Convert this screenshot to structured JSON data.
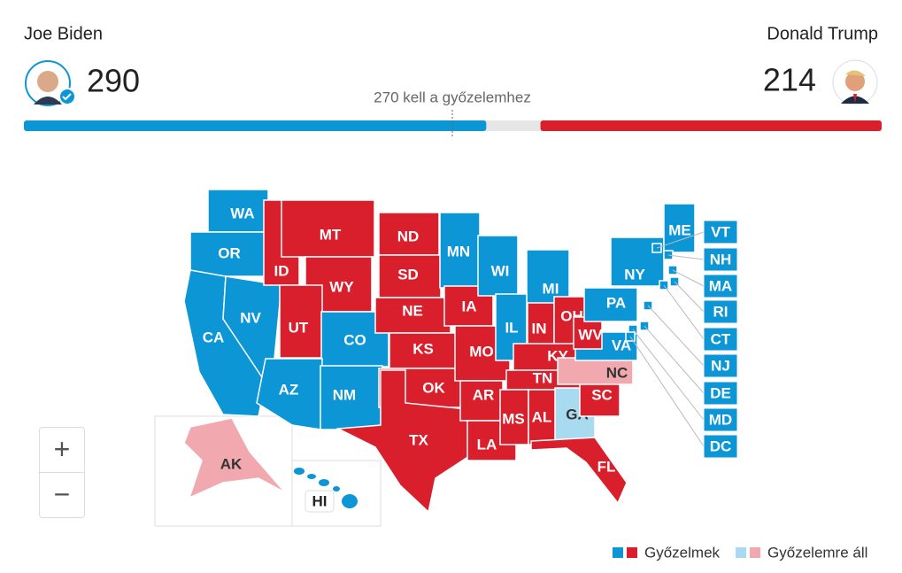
{
  "header": {
    "threshold": "270 kell a győzelemhez",
    "candidates": [
      {
        "name": "Joe Biden",
        "votes": 290,
        "color": "#0c96d6"
      },
      {
        "name": "Donald Trump",
        "votes": 214,
        "color": "#d91f2b"
      }
    ]
  },
  "controls": {
    "zoom_in": "+",
    "zoom_out": "−"
  },
  "legend": [
    {
      "label": "Győzelmek",
      "colors": [
        "#0c96d6",
        "#d91f2b"
      ]
    },
    {
      "label": "Győzelemre áll",
      "colors": [
        "#a8daf0",
        "#f1a9af"
      ]
    }
  ],
  "states": [
    {
      "label": "WA",
      "color": "#0c96d6"
    },
    {
      "label": "OR",
      "color": "#0c96d6"
    },
    {
      "label": "CA",
      "color": "#0c96d6"
    },
    {
      "label": "NV",
      "color": "#0c96d6"
    },
    {
      "label": "ID",
      "color": "#d91f2b"
    },
    {
      "label": "MT",
      "color": "#d91f2b"
    },
    {
      "label": "WY",
      "color": "#d91f2b"
    },
    {
      "label": "UT",
      "color": "#d91f2b"
    },
    {
      "label": "CO",
      "color": "#0c96d6"
    },
    {
      "label": "AZ",
      "color": "#0c96d6"
    },
    {
      "label": "NM",
      "color": "#0c96d6"
    },
    {
      "label": "ND",
      "color": "#d91f2b"
    },
    {
      "label": "SD",
      "color": "#d91f2b"
    },
    {
      "label": "NE",
      "color": "#d91f2b"
    },
    {
      "label": "KS",
      "color": "#d91f2b"
    },
    {
      "label": "OK",
      "color": "#d91f2b"
    },
    {
      "label": "TX",
      "color": "#d91f2b"
    },
    {
      "label": "MN",
      "color": "#0c96d6"
    },
    {
      "label": "IA",
      "color": "#d91f2b"
    },
    {
      "label": "MO",
      "color": "#d91f2b"
    },
    {
      "label": "AR",
      "color": "#d91f2b"
    },
    {
      "label": "LA",
      "color": "#d91f2b"
    },
    {
      "label": "WI",
      "color": "#0c96d6"
    },
    {
      "label": "MI",
      "color": "#0c96d6"
    },
    {
      "label": "IL",
      "color": "#0c96d6"
    },
    {
      "label": "IN",
      "color": "#d91f2b"
    },
    {
      "label": "OH",
      "color": "#d91f2b"
    },
    {
      "label": "KY",
      "color": "#d91f2b"
    },
    {
      "label": "TN",
      "color": "#d91f2b"
    },
    {
      "label": "MS",
      "color": "#d91f2b"
    },
    {
      "label": "AL",
      "color": "#d91f2b"
    },
    {
      "label": "GA",
      "color": "#a8daf0"
    },
    {
      "label": "FL",
      "color": "#d91f2b"
    },
    {
      "label": "SC",
      "color": "#d91f2b"
    },
    {
      "label": "NC",
      "color": "#f1a9af"
    },
    {
      "label": "VA",
      "color": "#0c96d6"
    },
    {
      "label": "WV",
      "color": "#d91f2b"
    },
    {
      "label": "PA",
      "color": "#0c96d6"
    },
    {
      "label": "NY",
      "color": "#0c96d6"
    },
    {
      "label": "ME",
      "color": "#0c96d6"
    },
    {
      "label": "VT",
      "color": "#0c96d6"
    },
    {
      "label": "NH",
      "color": "#0c96d6"
    },
    {
      "label": "MA",
      "color": "#0c96d6"
    },
    {
      "label": "RI",
      "color": "#0c96d6"
    },
    {
      "label": "CT",
      "color": "#0c96d6"
    },
    {
      "label": "NJ",
      "color": "#0c96d6"
    },
    {
      "label": "DE",
      "color": "#0c96d6"
    },
    {
      "label": "MD",
      "color": "#0c96d6"
    },
    {
      "label": "DC",
      "color": "#0c96d6"
    },
    {
      "label": "AK",
      "color": "#f1a9af"
    },
    {
      "label": "HI",
      "color": "#0c96d6"
    }
  ]
}
